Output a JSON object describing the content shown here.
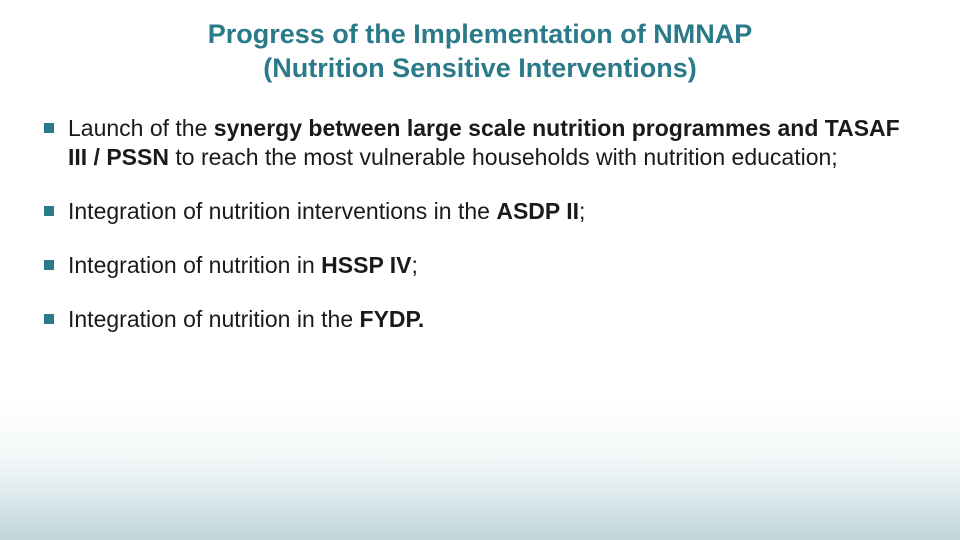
{
  "slide": {
    "title_line1": "Progress of the Implementation of NMNAP",
    "title_line2": "(Nutrition Sensitive Interventions)",
    "title_color": "#2b7a8a",
    "title_fontsize": 27,
    "bullet_color": "#2b7a8a",
    "body_fontsize": 23,
    "body_color": "#1a1a1a",
    "background_color": "#ffffff",
    "gradient_color": "#8bb2bc",
    "bullets": [
      {
        "pre": "Launch of the ",
        "bold": "synergy between large scale nutrition programmes and TASAF III / PSSN",
        "post": " to reach the most vulnerable households with nutrition education;"
      },
      {
        "pre": "Integration of nutrition interventions in the ",
        "bold": "ASDP II",
        "post": ";"
      },
      {
        "pre": "Integration of nutrition in ",
        "bold": "HSSP IV",
        "post": ";"
      },
      {
        "pre": "Integration of nutrition in the ",
        "bold": "FYDP.",
        "post": ""
      }
    ]
  }
}
